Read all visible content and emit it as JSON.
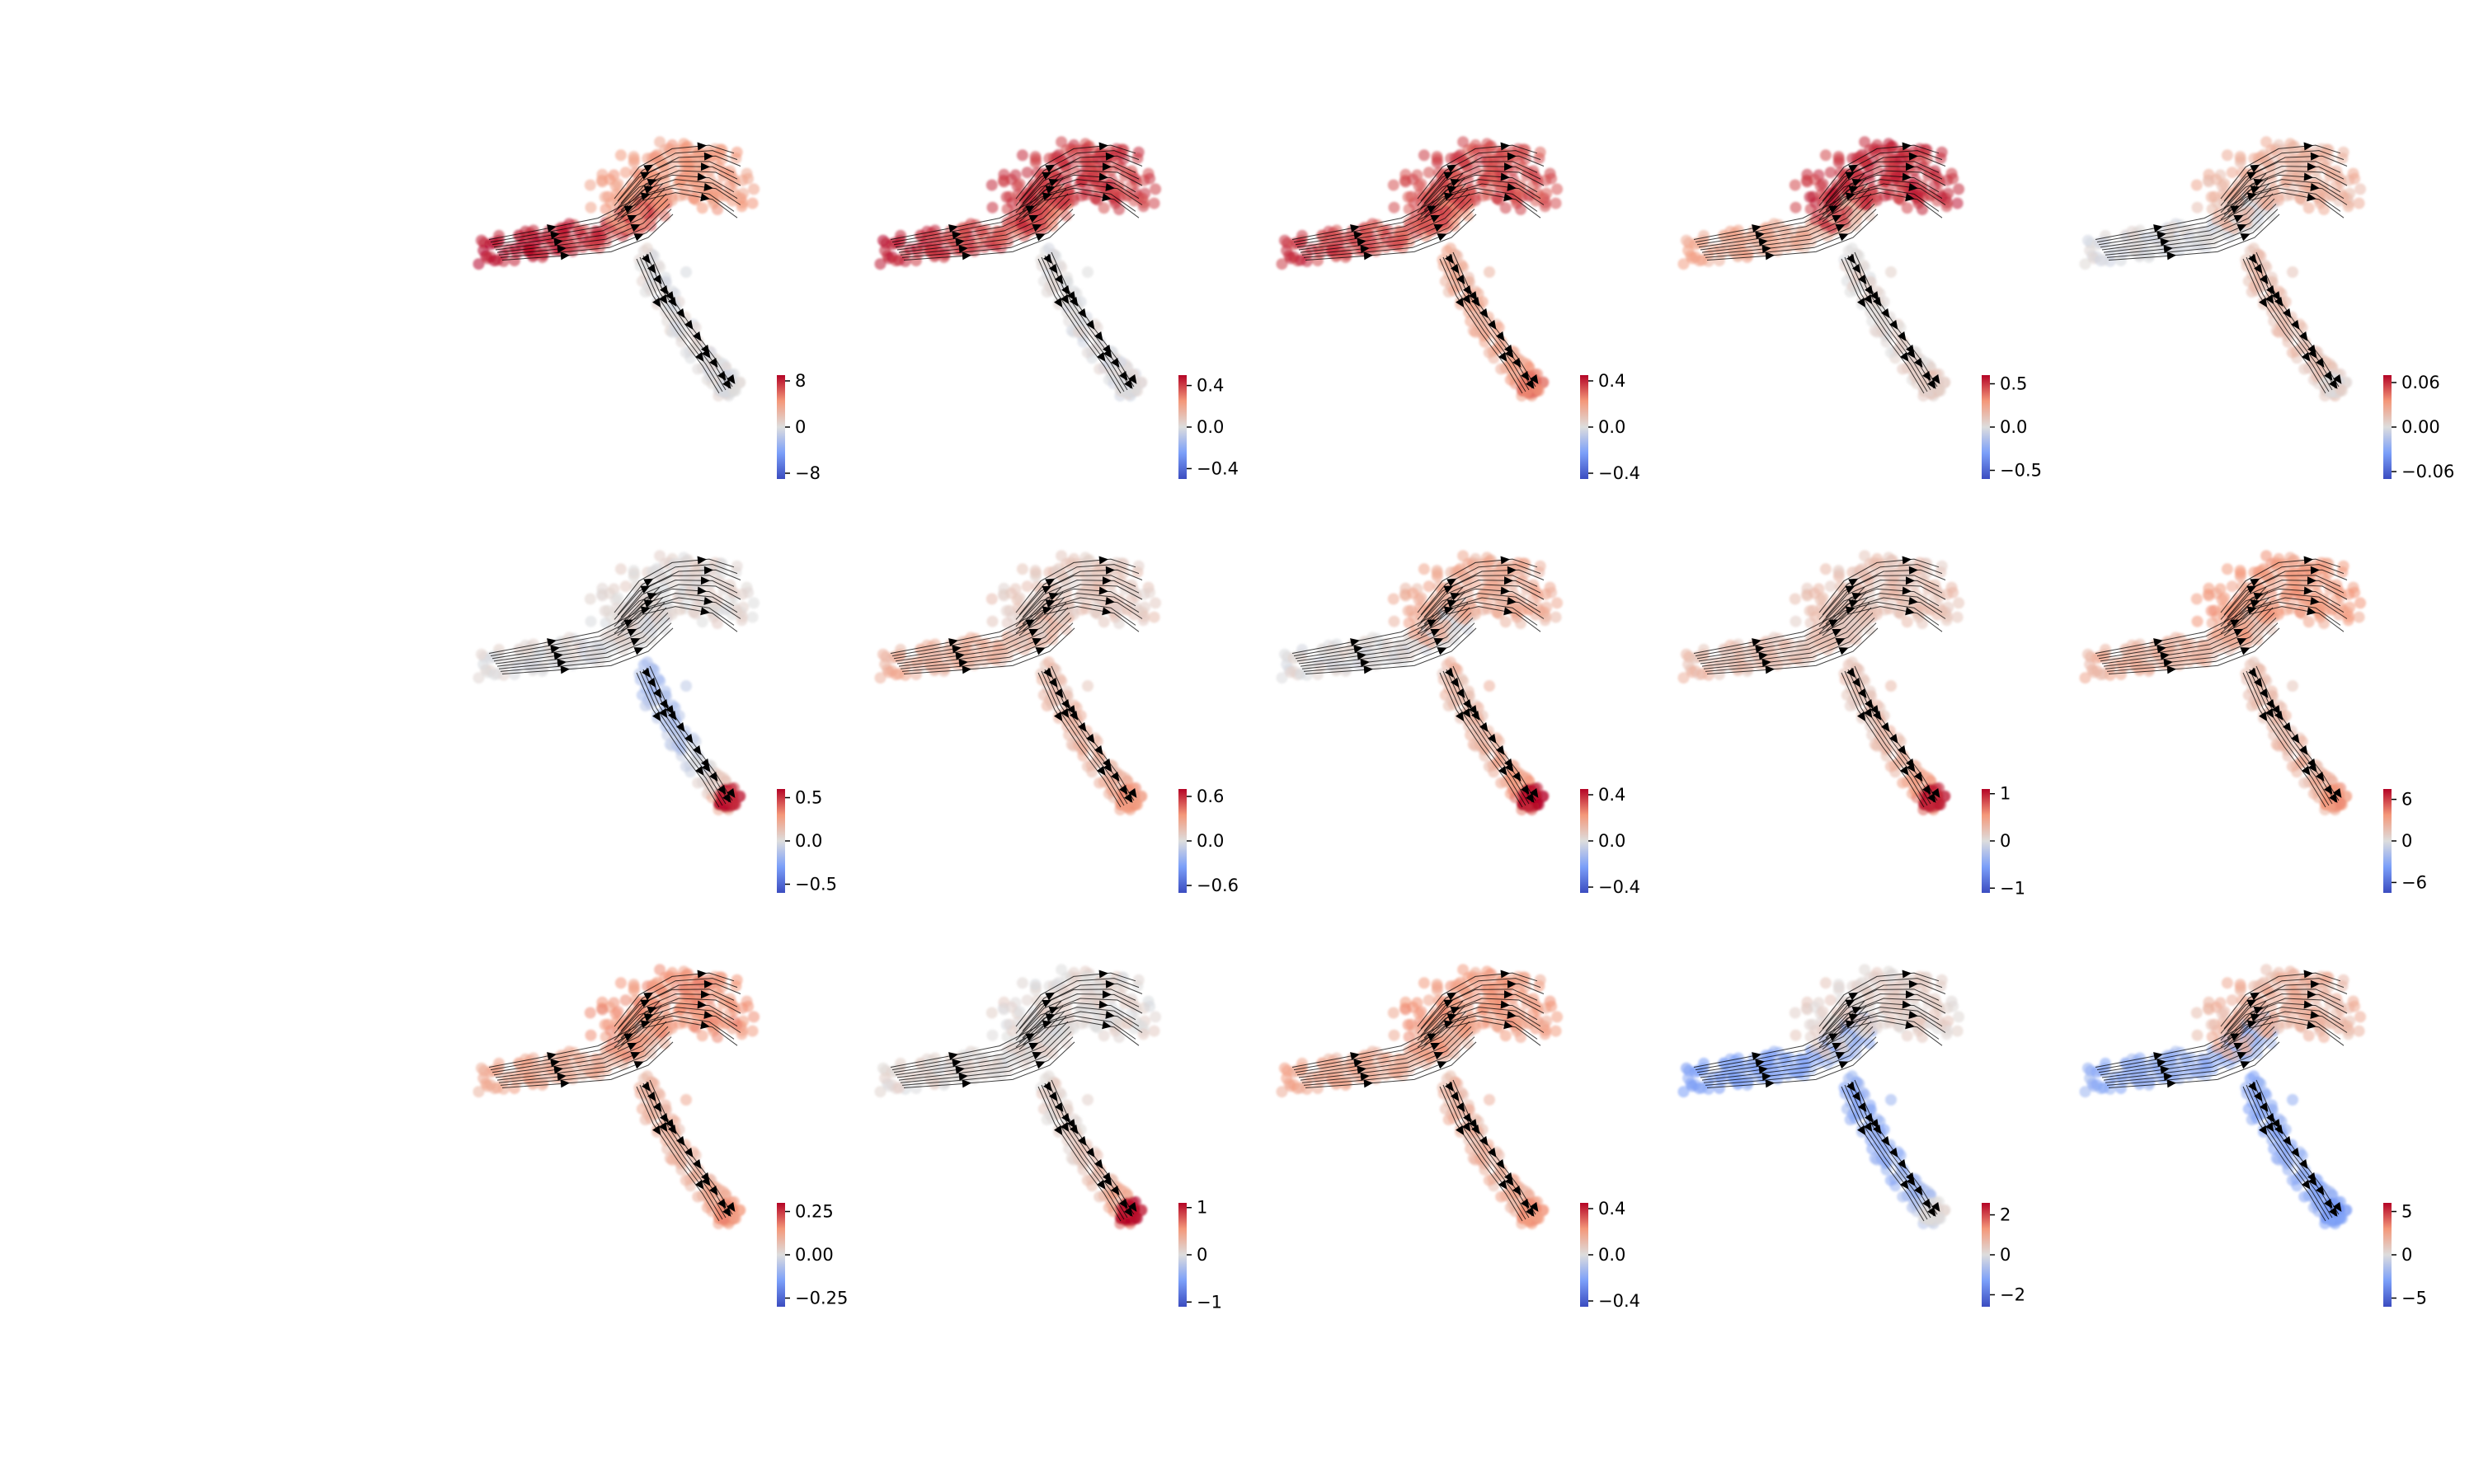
{
  "chart_data": [
    {
      "type": "scatter",
      "panel": 1,
      "colormap": "coolwarm",
      "colorbar_ticks": [
        "8",
        "0",
        "−8"
      ],
      "color_range": [
        -9,
        9
      ],
      "profile": {
        "trunk": 1.0,
        "upper": 0.45,
        "stem": 0.02,
        "tip": 0.0
      }
    },
    {
      "type": "scatter",
      "panel": 2,
      "colormap": "coolwarm",
      "colorbar_ticks": [
        "0.4",
        "0.0",
        "−0.4"
      ],
      "color_range": [
        -0.5,
        0.5
      ],
      "profile": {
        "trunk": 0.9,
        "upper": 0.8,
        "stem": 0.0,
        "tip": 0.0
      }
    },
    {
      "type": "scatter",
      "panel": 3,
      "colormap": "coolwarm",
      "colorbar_ticks": [
        "0.4",
        "0.0",
        "−0.4"
      ],
      "color_range": [
        -0.45,
        0.45
      ],
      "profile": {
        "trunk": 0.85,
        "upper": 0.75,
        "stem": 0.35,
        "tip": 0.6
      }
    },
    {
      "type": "scatter",
      "panel": 4,
      "colormap": "coolwarm",
      "colorbar_ticks": [
        "0.5",
        "0.0",
        "−0.5"
      ],
      "color_range": [
        -0.6,
        0.6
      ],
      "profile": {
        "trunk": 0.4,
        "upper": 0.85,
        "stem": 0.05,
        "tip": 0.15
      }
    },
    {
      "type": "scatter",
      "panel": 5,
      "colormap": "coolwarm",
      "colorbar_ticks": [
        "0.06",
        "0.00",
        "−0.06"
      ],
      "color_range": [
        -0.07,
        0.07
      ],
      "profile": {
        "trunk": 0.0,
        "upper": 0.3,
        "stem": 0.25,
        "tip": 0.05
      }
    },
    {
      "type": "scatter",
      "panel": 6,
      "colormap": "coolwarm",
      "colorbar_ticks": [
        "0.5",
        "0.0",
        "−0.5"
      ],
      "color_range": [
        -0.6,
        0.6
      ],
      "profile": {
        "trunk": 0.02,
        "upper": 0.05,
        "stem": -0.25,
        "tip": 0.9
      }
    },
    {
      "type": "scatter",
      "panel": 7,
      "colormap": "coolwarm",
      "colorbar_ticks": [
        "0.6",
        "0.0",
        "−0.6"
      ],
      "color_range": [
        -0.7,
        0.7
      ],
      "profile": {
        "trunk": 0.35,
        "upper": 0.15,
        "stem": 0.25,
        "tip": 0.5
      }
    },
    {
      "type": "scatter",
      "panel": 8,
      "colormap": "coolwarm",
      "colorbar_ticks": [
        "0.4",
        "0.0",
        "−0.4"
      ],
      "color_range": [
        -0.45,
        0.45
      ],
      "profile": {
        "trunk": 0.02,
        "upper": 0.35,
        "stem": 0.25,
        "tip": 0.95
      }
    },
    {
      "type": "scatter",
      "panel": 9,
      "colormap": "coolwarm",
      "colorbar_ticks": [
        "1",
        "0",
        "−1"
      ],
      "color_range": [
        -1.1,
        1.1
      ],
      "profile": {
        "trunk": 0.25,
        "upper": 0.2,
        "stem": 0.2,
        "tip": 0.9
      }
    },
    {
      "type": "scatter",
      "panel": 10,
      "colormap": "coolwarm",
      "colorbar_ticks": [
        "6",
        "0",
        "−6"
      ],
      "color_range": [
        -7.5,
        7.5
      ],
      "profile": {
        "trunk": 0.35,
        "upper": 0.45,
        "stem": 0.25,
        "tip": 0.5
      }
    },
    {
      "type": "scatter",
      "panel": 11,
      "colormap": "coolwarm",
      "colorbar_ticks": [
        "0.25",
        "0.00",
        "−0.25"
      ],
      "color_range": [
        -0.3,
        0.3
      ],
      "profile": {
        "trunk": 0.4,
        "upper": 0.5,
        "stem": 0.3,
        "tip": 0.5
      }
    },
    {
      "type": "scatter",
      "panel": 12,
      "colormap": "coolwarm",
      "colorbar_ticks": [
        "1",
        "0",
        "−1"
      ],
      "color_range": [
        -1.1,
        1.1
      ],
      "profile": {
        "trunk": 0.05,
        "upper": 0.05,
        "stem": 0.1,
        "tip": 0.95
      }
    },
    {
      "type": "scatter",
      "panel": 13,
      "colormap": "coolwarm",
      "colorbar_ticks": [
        "0.4",
        "0.0",
        "−0.4"
      ],
      "color_range": [
        -0.45,
        0.45
      ],
      "profile": {
        "trunk": 0.4,
        "upper": 0.45,
        "stem": 0.3,
        "tip": 0.5
      }
    },
    {
      "type": "scatter",
      "panel": 14,
      "colormap": "coolwarm",
      "colorbar_ticks": [
        "2",
        "0",
        "−2"
      ],
      "color_range": [
        -2.6,
        2.6
      ],
      "profile": {
        "trunk": -0.5,
        "upper": 0.1,
        "stem": -0.4,
        "tip": 0.0
      }
    },
    {
      "type": "scatter",
      "panel": 15,
      "colormap": "coolwarm",
      "colorbar_ticks": [
        "5",
        "0",
        "−5"
      ],
      "color_range": [
        -6,
        6
      ],
      "profile": {
        "trunk": -0.4,
        "upper": 0.3,
        "stem": -0.4,
        "tip": -0.5
      }
    }
  ],
  "colors": {
    "cold": "#3b4cc0",
    "neutral": "#dddddd",
    "warm": "#b40426",
    "streamline": "#000000",
    "background": "#ffffff"
  }
}
